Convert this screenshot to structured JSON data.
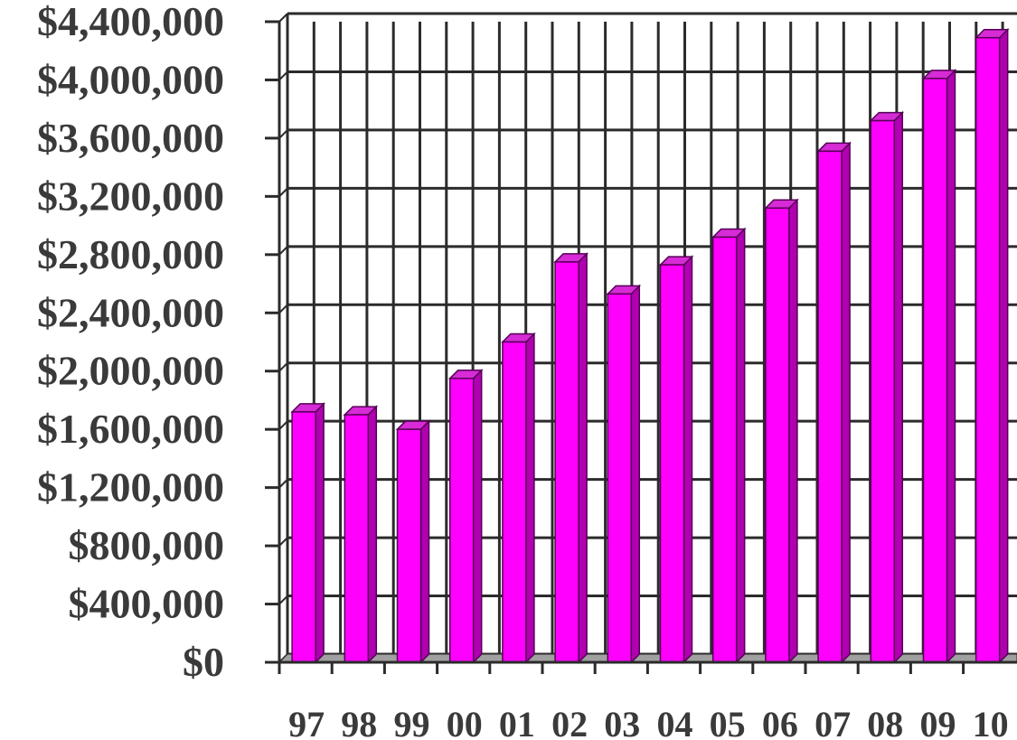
{
  "chart_data": {
    "type": "bar",
    "title": "",
    "xlabel": "",
    "ylabel": "",
    "categories": [
      "97",
      "98",
      "99",
      "00",
      "01",
      "02",
      "03",
      "04",
      "05",
      "06",
      "07",
      "08",
      "09",
      "10"
    ],
    "values": [
      1720000,
      1700000,
      1600000,
      1950000,
      2200000,
      2750000,
      2530000,
      2730000,
      2920000,
      3120000,
      3510000,
      3720000,
      4010000,
      4290000
    ],
    "ylim": [
      0,
      4400000
    ],
    "y_ticks": [
      0,
      400000,
      800000,
      1200000,
      1600000,
      2000000,
      2400000,
      2800000,
      3200000,
      3600000,
      4000000,
      4400000
    ],
    "y_tick_labels": [
      "$0",
      "$400,000",
      "$800,000",
      "$1,200,000",
      "$1,600,000",
      "$2,000,000",
      "$2,400,000",
      "$2,800,000",
      "$3,200,000",
      "$3,600,000",
      "$4,000,000",
      "$4,400,000"
    ],
    "grid": true,
    "colors": {
      "bar_front": "#ff00ff",
      "bar_side": "#b000b0",
      "bar_top": "#d62bd6",
      "bar_outline": "#550055",
      "grid": "#2b2b2b",
      "floor": "#a0a0a0",
      "text": "#3a3a3a"
    }
  }
}
